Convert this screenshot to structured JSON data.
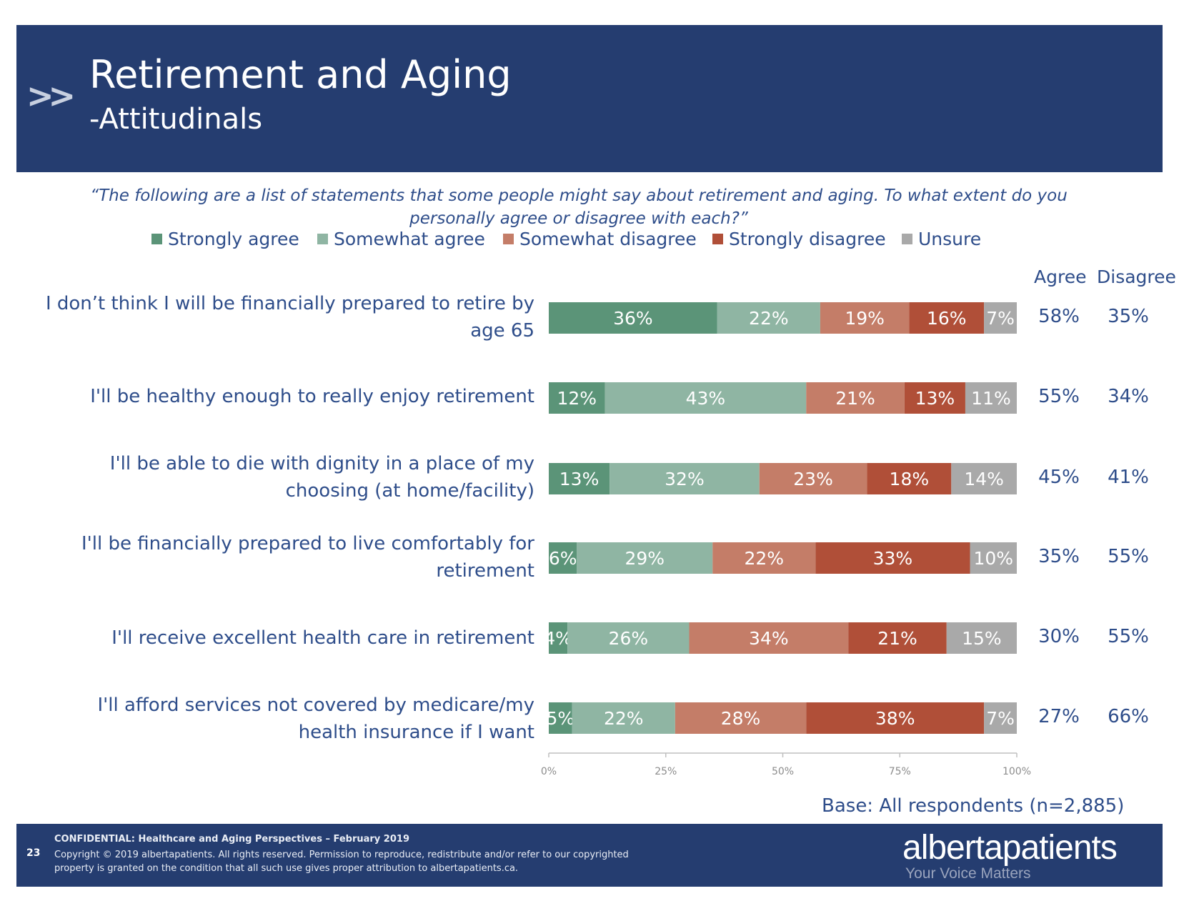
{
  "header": {
    "chevron": ">>",
    "title": "Retirement and Aging",
    "subtitle": "-Attitudinals"
  },
  "question": "“The following are a list of statements that some people might say about retirement and aging. To what extent do you personally agree or disagree with each?”",
  "columns": {
    "agree": "Agree",
    "disagree": "Disagree"
  },
  "chart_data": {
    "type": "bar",
    "orientation": "horizontal",
    "stacked": true,
    "categories": [
      "I don’t think I will be financially prepared to retire by age 65",
      "I'll be healthy enough to really enjoy retirement",
      "I'll be able to die with dignity in a place of my choosing (at home/facility)",
      "I'll be financially prepared to live comfortably for retirement",
      "I'll receive excellent health care in retirement",
      "I'll afford services not covered by medicare/my health insurance if I want"
    ],
    "series": [
      {
        "name": "Strongly agree",
        "color": "#5b9478",
        "values": [
          36,
          12,
          13,
          6,
          4,
          5
        ]
      },
      {
        "name": "Somewhat agree",
        "color": "#8fb5a3",
        "values": [
          22,
          43,
          32,
          29,
          26,
          22
        ]
      },
      {
        "name": "Somewhat disagree",
        "color": "#c47d68",
        "values": [
          19,
          21,
          23,
          22,
          34,
          28
        ]
      },
      {
        "name": "Strongly disagree",
        "color": "#b04f38",
        "values": [
          16,
          13,
          18,
          33,
          21,
          38
        ]
      },
      {
        "name": "Unsure",
        "color": "#a9a9a9",
        "values": [
          7,
          11,
          14,
          10,
          15,
          7
        ]
      }
    ],
    "agree_totals": [
      "58%",
      "55%",
      "45%",
      "35%",
      "30%",
      "27%"
    ],
    "disagree_totals": [
      "35%",
      "34%",
      "41%",
      "55%",
      "55%",
      "66%"
    ],
    "x_ticks": [
      "0%",
      "25%",
      "50%",
      "75%",
      "100%"
    ],
    "xlim": [
      0,
      100
    ],
    "legend_position": "top",
    "grid": false
  },
  "base_note": "Base: All respondents (n=2,885)",
  "footer": {
    "page_number": "23",
    "confidential": "CONFIDENTIAL: Healthcare and Aging Perspectives – February 2019",
    "copyright": "Copyright © 2019 albertapatients. All rights reserved. Permission to reproduce, redistribute and/or refer to our copyrighted property is granted on the condition that all such use gives proper attribution to albertapatients.ca.",
    "logo": "albertapatients",
    "tagline": "Your Voice Matters"
  }
}
